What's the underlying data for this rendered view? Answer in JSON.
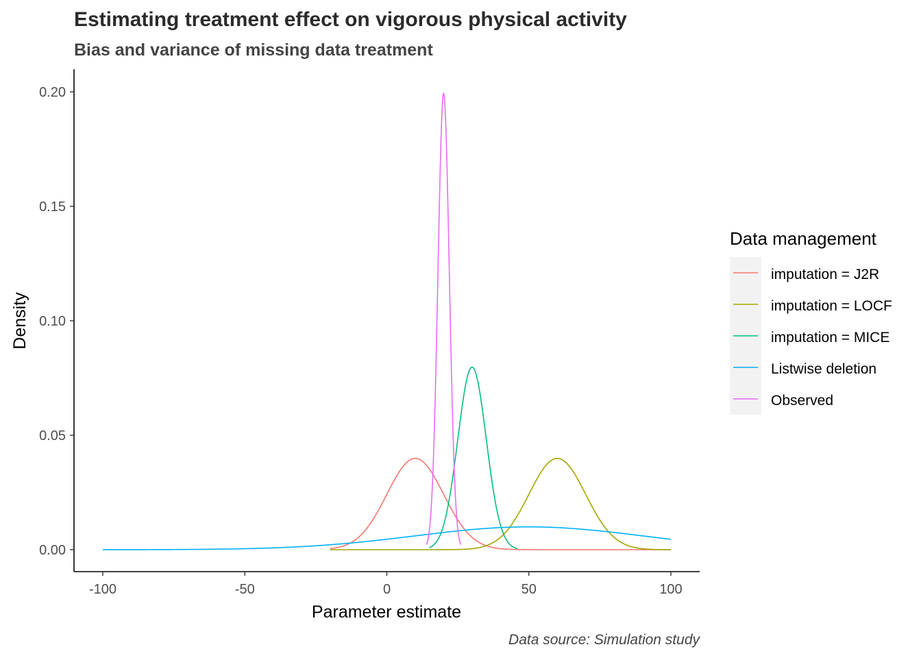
{
  "chart_data": {
    "type": "line",
    "title": "Estimating treatment effect on vigorous physical activity",
    "subtitle": "Bias and variance of missing data treatment",
    "xlabel": "Parameter estimate",
    "ylabel": "Density",
    "caption": "Data source: Simulation study",
    "xlim": [
      -100,
      100
    ],
    "ylim": [
      0,
      0.2
    ],
    "x_ticks": [
      -100,
      -50,
      0,
      50,
      100
    ],
    "x_tick_labels": [
      "-100",
      "-50",
      "0",
      "50",
      "100"
    ],
    "y_ticks": [
      0,
      0.05,
      0.1,
      0.15,
      0.2
    ],
    "y_tick_labels": [
      "0.00",
      "0.05",
      "0.10",
      "0.15",
      "0.20"
    ],
    "grid": false,
    "legend": {
      "title": "Data management",
      "position": "right"
    },
    "series": [
      {
        "name": "imputation = J2R",
        "color": "#F8766D",
        "distribution": "normal",
        "mean": 10,
        "sd": 10,
        "x_range": [
          -20,
          100
        ]
      },
      {
        "name": "imputation = LOCF",
        "color": "#A3A500",
        "distribution": "normal",
        "mean": 60,
        "sd": 10,
        "x_range": [
          -20,
          100
        ]
      },
      {
        "name": "imputation = MICE",
        "color": "#00BF7D",
        "distribution": "normal",
        "mean": 30,
        "sd": 5,
        "x_range": [
          15,
          46
        ]
      },
      {
        "name": "Listwise deletion",
        "color": "#00B0F6",
        "distribution": "normal",
        "mean": 50,
        "sd": 40,
        "x_range": [
          -100,
          100
        ]
      },
      {
        "name": "Observed",
        "color": "#E76BF3",
        "distribution": "normal",
        "mean": 20,
        "sd": 2,
        "x_range": [
          14,
          26
        ]
      }
    ]
  }
}
